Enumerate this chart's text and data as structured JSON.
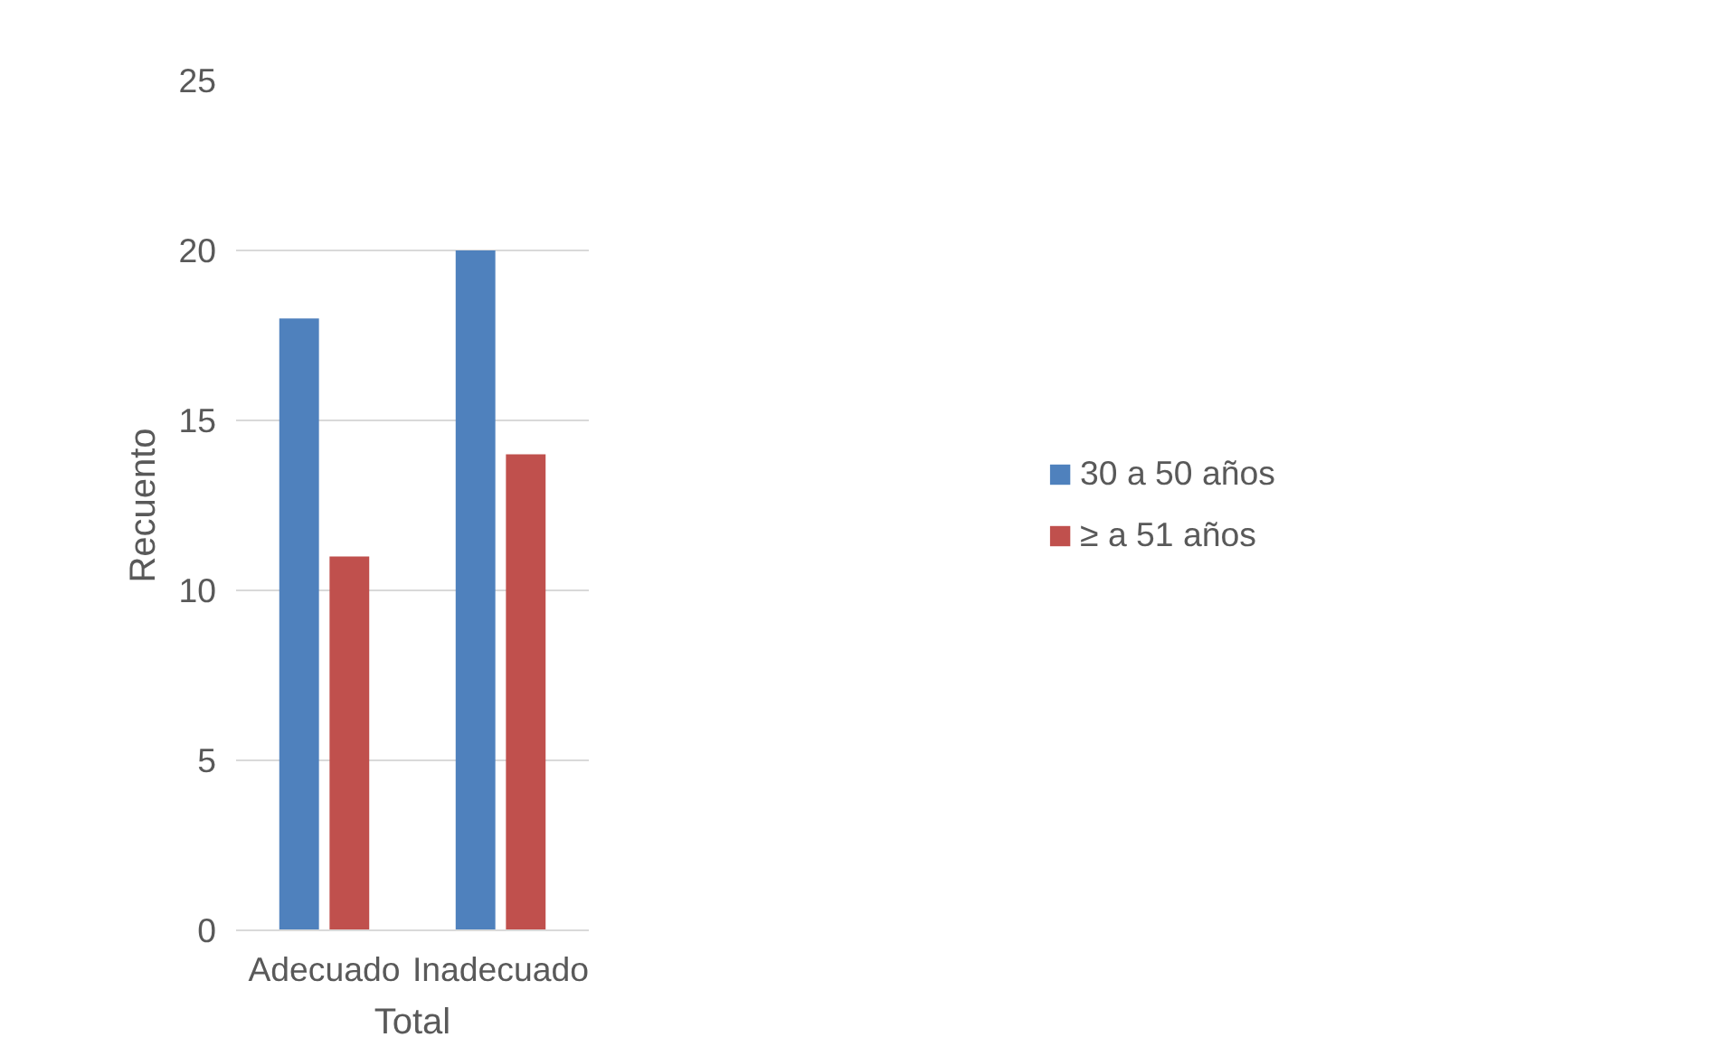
{
  "chart_data": {
    "type": "bar",
    "xlabel": "Total",
    "ylabel": "Recuento",
    "categories": [
      "Adecuado",
      "Inadecuado"
    ],
    "series": [
      {
        "name": "30 a 50 años",
        "color": "#4f81bd",
        "values": [
          18,
          20
        ]
      },
      {
        "name": "≥ a 51 años",
        "color": "#c0504d",
        "values": [
          11,
          14
        ]
      }
    ],
    "ylim": [
      0,
      25
    ],
    "yticks": [
      0,
      5,
      10,
      15,
      20,
      25
    ],
    "grid": "y",
    "legend": "right"
  }
}
